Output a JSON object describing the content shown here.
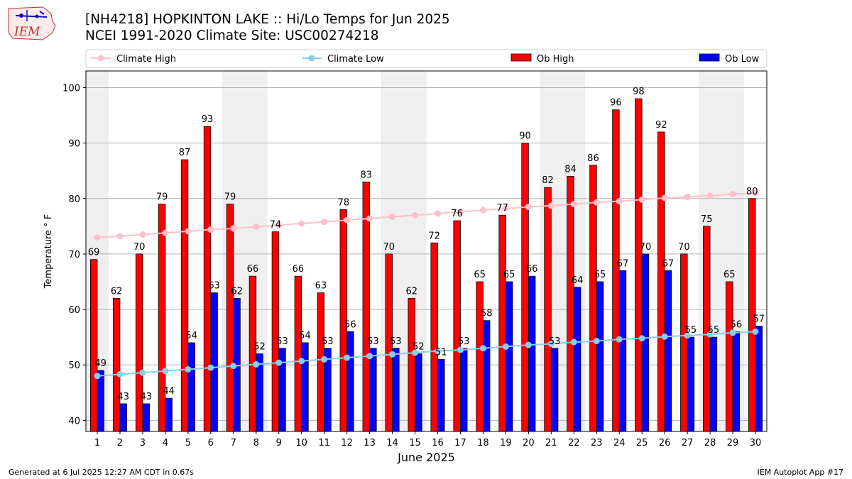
{
  "header": {
    "title_line1": "[NH4218] HOPKINTON LAKE :: Hi/Lo Temps for Jun 2025",
    "title_line2": "NCEI 1991-2020 Climate Site: USC00274218",
    "logo_text": "IEM"
  },
  "footer": {
    "left": "Generated at 6 Jul 2025 12:27 AM CDT in 0.67s",
    "right": "IEM Autoplot App #17"
  },
  "chart_data": {
    "type": "bar",
    "xlabel": "June 2025",
    "ylabel": "Temperature ° F",
    "ylim": [
      38,
      103
    ],
    "yticks": [
      40,
      50,
      60,
      70,
      80,
      90,
      100
    ],
    "grid": true,
    "legend_placement": "top",
    "categories": [
      "1",
      "2",
      "3",
      "4",
      "5",
      "6",
      "7",
      "8",
      "9",
      "10",
      "11",
      "12",
      "13",
      "14",
      "15",
      "16",
      "17",
      "18",
      "19",
      "20",
      "21",
      "22",
      "23",
      "24",
      "25",
      "26",
      "27",
      "28",
      "29",
      "30"
    ],
    "weekend_shaded_days": [
      1,
      7,
      8,
      14,
      15,
      21,
      22,
      28,
      29
    ],
    "series": [
      {
        "name": "Climate High",
        "kind": "line",
        "color": "#ffc0cb",
        "values": [
          73.0,
          73.2,
          73.5,
          73.8,
          74.1,
          74.4,
          74.6,
          74.9,
          75.2,
          75.5,
          75.8,
          76.1,
          76.4,
          76.7,
          77.0,
          77.3,
          77.6,
          77.9,
          78.2,
          78.5,
          78.7,
          79.0,
          79.3,
          79.5,
          79.8,
          80.1,
          80.3,
          80.5,
          80.8,
          81.0
        ]
      },
      {
        "name": "Climate Low",
        "kind": "line",
        "color": "#87ceeb",
        "values": [
          48.0,
          48.3,
          48.6,
          48.9,
          49.2,
          49.5,
          49.8,
          50.1,
          50.4,
          50.7,
          51.0,
          51.3,
          51.6,
          51.9,
          52.2,
          52.5,
          52.7,
          53.0,
          53.3,
          53.6,
          53.8,
          54.1,
          54.3,
          54.6,
          54.8,
          55.1,
          55.3,
          55.5,
          55.8,
          56.0
        ]
      },
      {
        "name": "Ob High",
        "kind": "bar",
        "color": "#ff0000",
        "values": [
          69,
          62,
          70,
          79,
          87,
          93,
          79,
          66,
          74,
          66,
          63,
          78,
          83,
          70,
          62,
          72,
          76,
          65,
          77,
          90,
          82,
          84,
          86,
          96,
          98,
          92,
          70,
          75,
          65,
          80
        ]
      },
      {
        "name": "Ob Low",
        "kind": "bar",
        "color": "#0000ff",
        "values": [
          49,
          43,
          43,
          44,
          54,
          63,
          62,
          52,
          53,
          54,
          53,
          56,
          53,
          53,
          52,
          51,
          53,
          58,
          65,
          66,
          53,
          64,
          65,
          67,
          70,
          67,
          55,
          55,
          56,
          57
        ]
      }
    ]
  }
}
